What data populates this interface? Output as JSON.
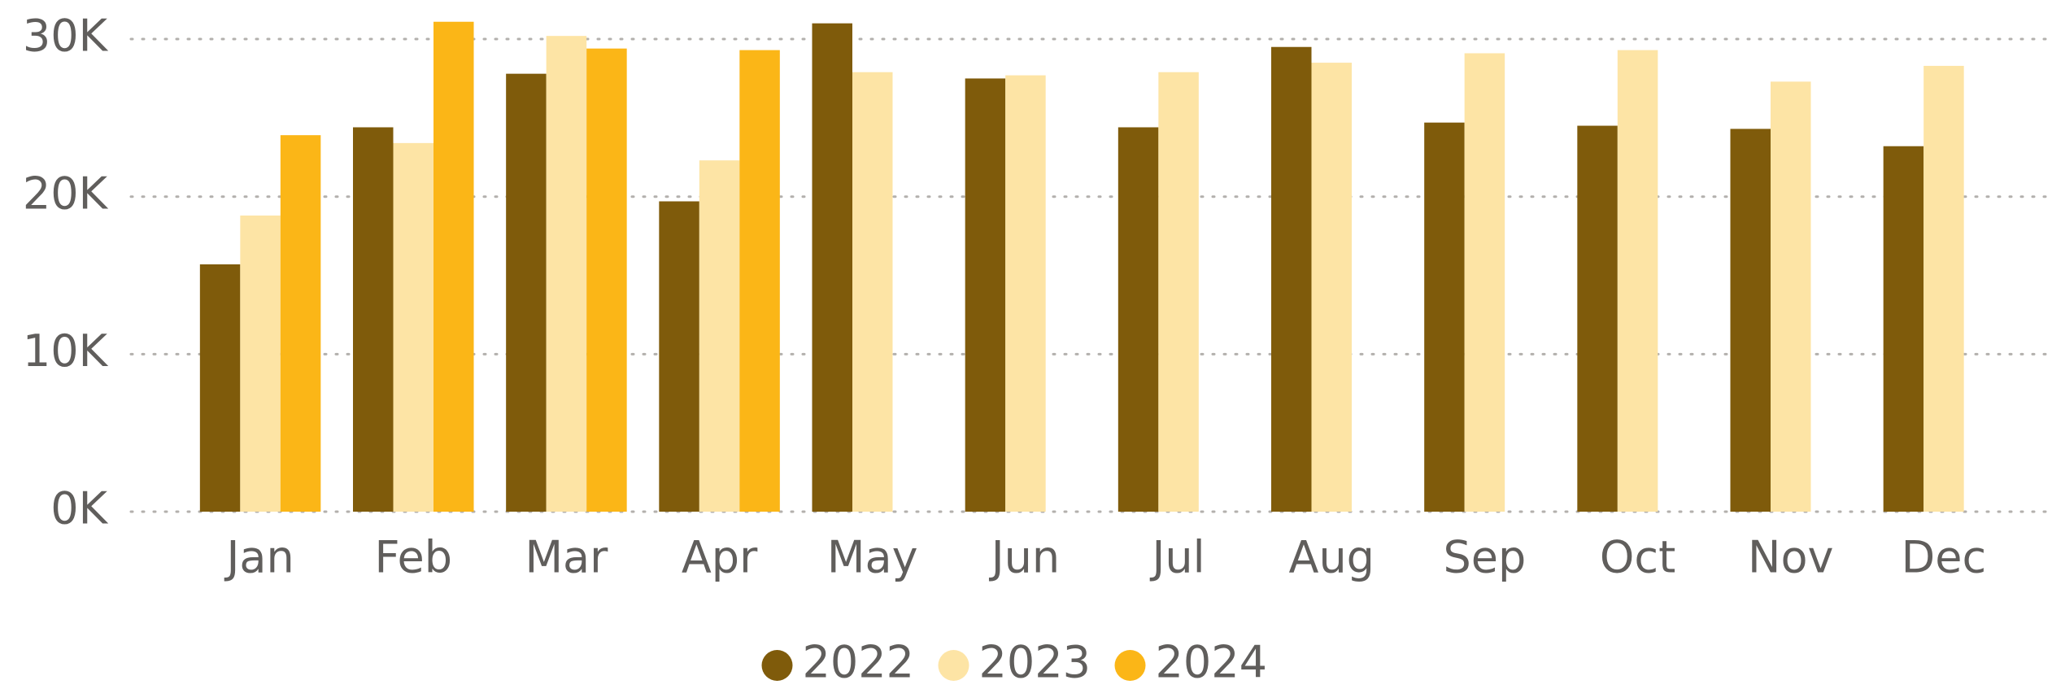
{
  "chart_data": {
    "type": "bar",
    "categories": [
      "Jan",
      "Feb",
      "Mar",
      "Apr",
      "May",
      "Jun",
      "Jul",
      "Aug",
      "Sep",
      "Oct",
      "Nov",
      "Dec"
    ],
    "series": [
      {
        "name": "2022",
        "color": "#7f5b0b",
        "values": [
          15700,
          24400,
          27800,
          19700,
          31000,
          27500,
          24400,
          29500,
          24700,
          24500,
          24300,
          23200
        ]
      },
      {
        "name": "2023",
        "color": "#fde4a5",
        "values": [
          18800,
          23400,
          30200,
          22300,
          27900,
          27700,
          27900,
          28500,
          29100,
          29300,
          27300,
          28300
        ]
      },
      {
        "name": "2024",
        "color": "#fbb617",
        "values": [
          23900,
          31100,
          29400,
          29300,
          null,
          null,
          null,
          null,
          null,
          null,
          null,
          null
        ]
      }
    ],
    "ylim": [
      0,
      31500
    ],
    "yticks": [
      {
        "value": 0,
        "label": "0K"
      },
      {
        "value": 10000,
        "label": "10K"
      },
      {
        "value": 20000,
        "label": "20K"
      },
      {
        "value": 30000,
        "label": "30K"
      }
    ],
    "grid": true,
    "legend": "bottom"
  }
}
